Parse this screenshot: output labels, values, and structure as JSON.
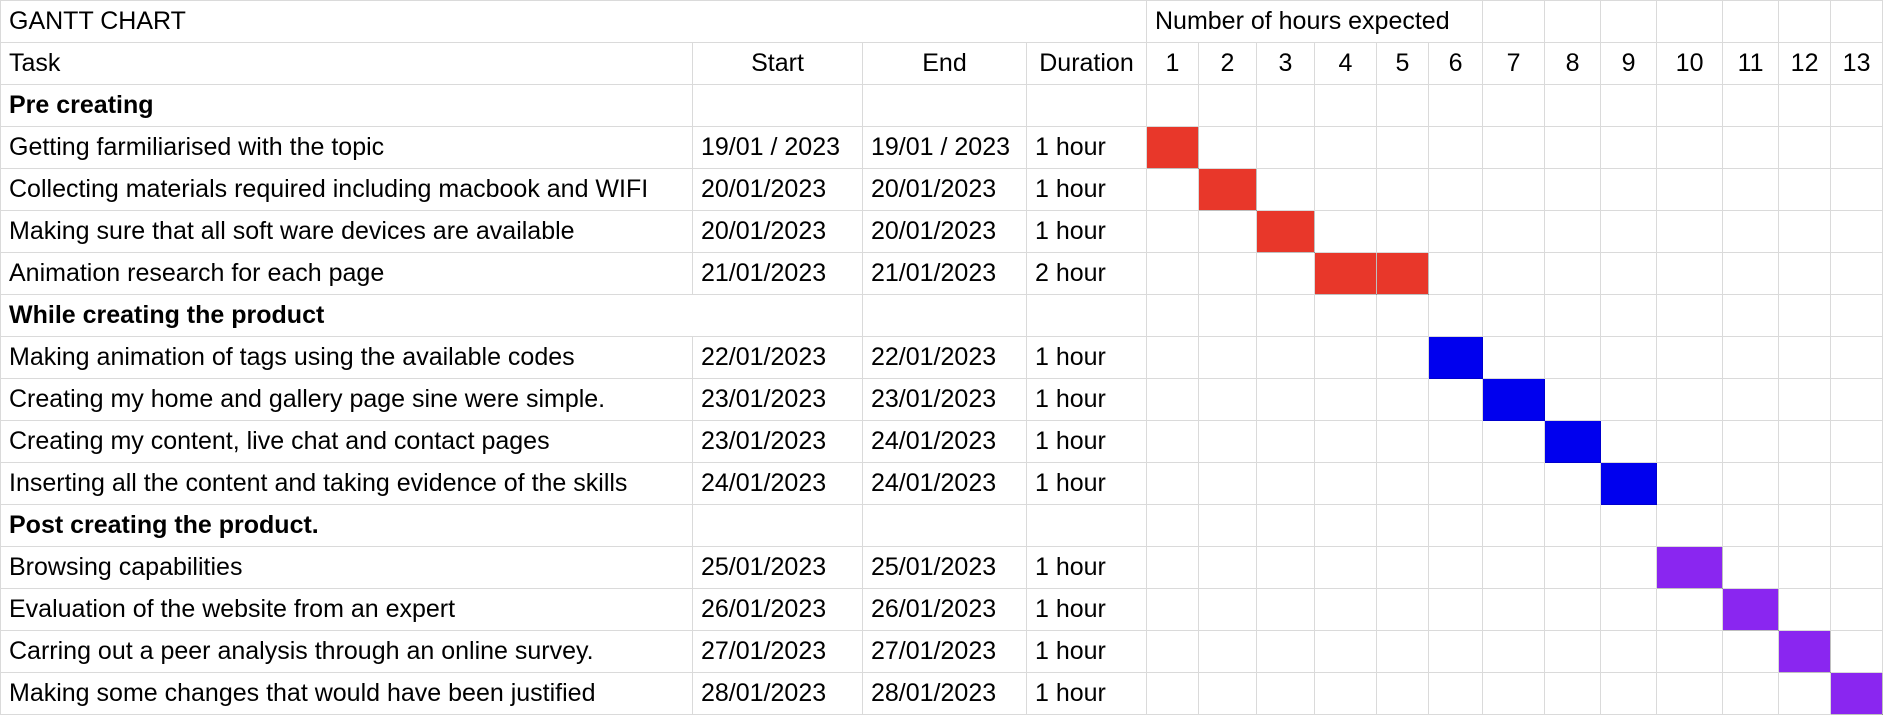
{
  "sheet": {
    "title": "GANTT CHART",
    "hours_heading": "Number of hours expected",
    "headers": {
      "task": "Task",
      "start": "Start",
      "end": "End",
      "duration": "Duration"
    }
  },
  "chart_data": {
    "type": "table",
    "title": "GANTT CHART",
    "hours": [
      "1",
      "2",
      "3",
      "4",
      "5",
      "6",
      "7",
      "8",
      "9",
      "10",
      "11",
      "12",
      "13"
    ],
    "colors": {
      "phase1": "#e8372a",
      "phase2": "#0000ee",
      "phase3": "#8a26f0",
      "grid": "#dadada"
    },
    "rows": [
      {
        "section": "Pre creating"
      },
      {
        "task": "Getting farmiliarised with the topic",
        "start": "19/01 / 2023",
        "end": "19/01 / 2023",
        "duration": "1 hour",
        "hour_start": 1,
        "hour_end": 1,
        "phase": "phase1"
      },
      {
        "task": "Collecting materials required including macbook and WIFI",
        "start": "20/01/2023",
        "end": "20/01/2023",
        "duration": "1 hour",
        "hour_start": 2,
        "hour_end": 2,
        "phase": "phase1"
      },
      {
        "task": "Making sure that all soft ware devices are available",
        "start": "20/01/2023",
        "end": "20/01/2023",
        "duration": "1 hour",
        "hour_start": 3,
        "hour_end": 3,
        "phase": "phase1"
      },
      {
        "task": "Animation research for each page",
        "start": "21/01/2023",
        "end": "21/01/2023",
        "duration": "2 hour",
        "hour_start": 4,
        "hour_end": 5,
        "phase": "phase1"
      },
      {
        "section": "While  creating the product"
      },
      {
        "task": "Making animation of tags using the available codes",
        "start": "22/01/2023",
        "end": "22/01/2023",
        "duration": "1 hour",
        "hour_start": 6,
        "hour_end": 6,
        "phase": "phase2"
      },
      {
        "task": "Creating my home and gallery page sine were simple.",
        "start": "23/01/2023",
        "end": "23/01/2023",
        "duration": "1 hour",
        "hour_start": 7,
        "hour_end": 7,
        "phase": "phase2"
      },
      {
        "task": "Creating my content, live chat and contact pages",
        "start": "23/01/2023",
        "end": "24/01/2023",
        "duration": "1 hour",
        "hour_start": 8,
        "hour_end": 8,
        "phase": "phase2"
      },
      {
        "task": "Inserting all the content and taking evidence of the skills",
        "start": "24/01/2023",
        "end": "24/01/2023",
        "duration": "1 hour",
        "hour_start": 9,
        "hour_end": 9,
        "phase": "phase2"
      },
      {
        "section": "Post  creating the product."
      },
      {
        "task": "Browsing capabilities",
        "start": "25/01/2023",
        "end": "25/01/2023",
        "duration": "1 hour",
        "hour_start": 10,
        "hour_end": 10,
        "phase": "phase3"
      },
      {
        "task": "Evaluation of the website from an expert",
        "start": "26/01/2023",
        "end": "26/01/2023",
        "duration": "1 hour",
        "hour_start": 11,
        "hour_end": 11,
        "phase": "phase3"
      },
      {
        "task": "Carring out a peer analysis through an online survey.",
        "start": "27/01/2023",
        "end": "27/01/2023",
        "duration": "1 hour",
        "hour_start": 12,
        "hour_end": 12,
        "phase": "phase3"
      },
      {
        "task": "Making some changes that would have been justified",
        "start": "28/01/2023",
        "end": "28/01/2023",
        "duration": "1 hour",
        "hour_start": 13,
        "hour_end": 13,
        "phase": "phase3"
      }
    ]
  }
}
